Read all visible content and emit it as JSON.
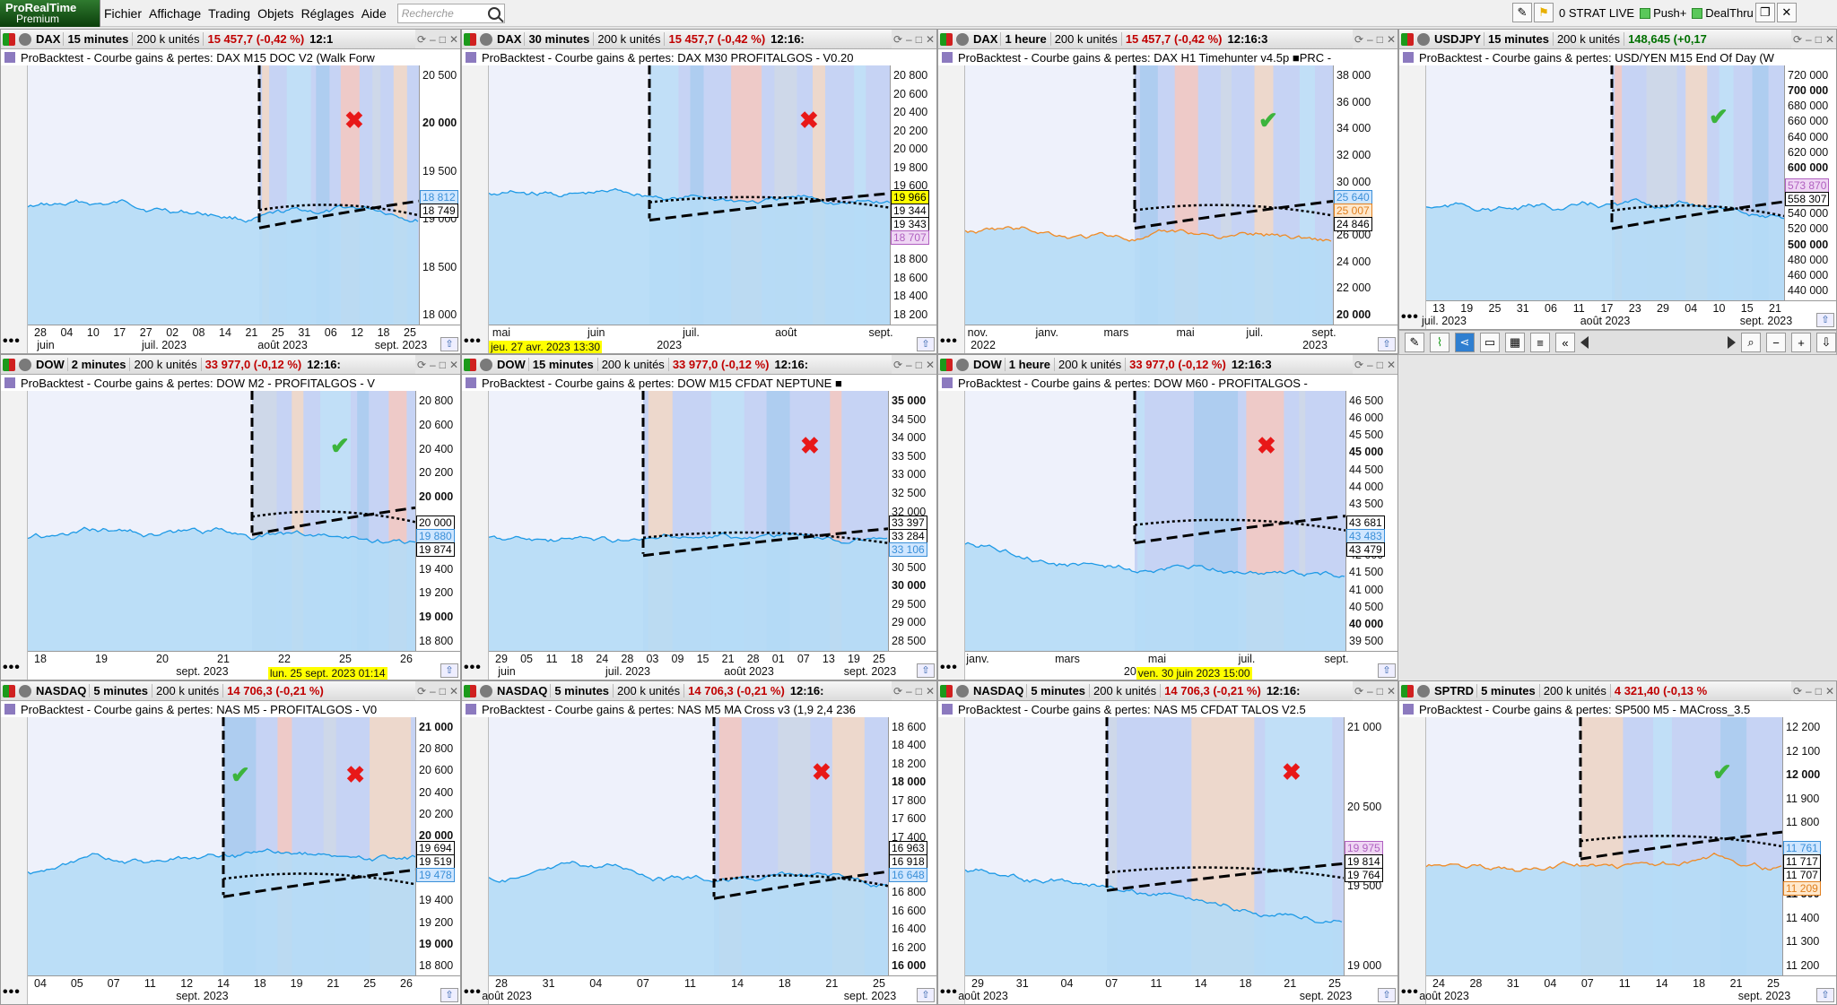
{
  "app": {
    "logo_line1": "ProRealTime",
    "logo_line2": "Premium"
  },
  "menu": [
    "Fichier",
    "Affichage",
    "Trading",
    "Objets",
    "Réglages",
    "Aide"
  ],
  "search": {
    "placeholder": "Recherche"
  },
  "menubar_right": {
    "strat": "0 STRAT LIVE",
    "push": "Push+",
    "deal": "DealThru"
  },
  "panels": [
    {
      "sym": "DAX",
      "tf": "15 minutes",
      "units": "200 k unités",
      "price": "15 457,7 (-0,42 %)",
      "dir": "neg",
      "time": "12:1",
      "title": "ProBacktest - Courbe gains & pertes: DAX M15 DOC V2 (Walk Forw",
      "mark": "cross",
      "y": [
        {
          "t": "20 500",
          "b": 0
        },
        {
          "t": "20 000",
          "b": 1
        },
        {
          "t": "19 500",
          "b": 0
        },
        {
          "t": "19 000",
          "b": 0
        },
        {
          "t": "18 500",
          "b": 0
        },
        {
          "t": "18 000",
          "b": 0
        }
      ],
      "ylab": [
        {
          "t": "18 812",
          "c": "#3a8fd8",
          "bg": "#cfe6ff"
        },
        {
          "t": "18 749",
          "c": "#000",
          "bg": "#fff"
        }
      ],
      "x": [
        "28",
        "04",
        "10",
        "17",
        "27",
        "02",
        "08",
        "14",
        "21",
        "25",
        "31",
        "06",
        "12",
        "18",
        "25"
      ],
      "months": [
        "juin",
        "juil. 2023",
        "août 2023",
        "sept. 2023"
      ]
    },
    {
      "sym": "DAX",
      "tf": "30 minutes",
      "units": "200 k unités",
      "price": "15 457,7 (-0,42 %)",
      "dir": "neg",
      "time": "12:16:",
      "title": "ProBacktest - Courbe gains & pertes: DAX M30 PROFITALGOS - V0.20",
      "mark": "cross",
      "y": [
        {
          "t": "20 800",
          "b": 0
        },
        {
          "t": "20 600",
          "b": 0
        },
        {
          "t": "20 400",
          "b": 0
        },
        {
          "t": "20 200",
          "b": 0
        },
        {
          "t": "20 000",
          "b": 0
        },
        {
          "t": "19 800",
          "b": 0
        },
        {
          "t": "19 600",
          "b": 0
        },
        {
          "t": "19 400",
          "b": 0
        },
        {
          "t": "19 200",
          "b": 0
        },
        {
          "t": "19 000",
          "b": 1
        },
        {
          "t": "18 800",
          "b": 0
        },
        {
          "t": "18 600",
          "b": 0
        },
        {
          "t": "18 400",
          "b": 0
        },
        {
          "t": "18 200",
          "b": 0
        }
      ],
      "ylab": [
        {
          "t": "19 966",
          "c": "#000",
          "bg": "#ffff00"
        },
        {
          "t": "19 344",
          "c": "#000",
          "bg": "#fff"
        },
        {
          "t": "19 343",
          "c": "#000",
          "bg": "#fff"
        },
        {
          "t": "18 707",
          "c": "#b060c0",
          "bg": "#efd6f4"
        }
      ],
      "x": [
        "mai",
        "juin",
        "juil.",
        "août",
        "sept."
      ],
      "months": [
        "2023"
      ],
      "cursor": "jeu. 27 avr. 2023 13:30"
    },
    {
      "sym": "DAX",
      "tf": "1 heure",
      "units": "200 k unités",
      "price": "15 457,7 (-0,42 %)",
      "dir": "neg",
      "time": "12:16:3",
      "title": "ProBacktest - Courbe gains & pertes: DAX H1 Timehunter v4.5p ■PRC -",
      "mark": "check",
      "y": [
        {
          "t": "38 000",
          "b": 0
        },
        {
          "t": "36 000",
          "b": 0
        },
        {
          "t": "34 000",
          "b": 0
        },
        {
          "t": "32 000",
          "b": 0
        },
        {
          "t": "30 000",
          "b": 0
        },
        {
          "t": "28 000",
          "b": 1
        },
        {
          "t": "26 000",
          "b": 0
        },
        {
          "t": "24 000",
          "b": 0
        },
        {
          "t": "22 000",
          "b": 0
        },
        {
          "t": "20 000",
          "b": 1
        }
      ],
      "ylab": [
        {
          "t": "25 640",
          "c": "#3a8fd8",
          "bg": "#cfe6ff"
        },
        {
          "t": "25 007",
          "c": "#e08020",
          "bg": "#ffe8cc"
        },
        {
          "t": "24 846",
          "c": "#000",
          "bg": "#fff"
        }
      ],
      "x": [
        "nov.",
        "janv.",
        "mars",
        "mai",
        "juil.",
        "sept."
      ],
      "months": [
        "2022",
        "2023"
      ]
    },
    {
      "sym": "USDJPY",
      "tf": "15 minutes",
      "units": "200 k unités",
      "price": "148,645 (+0,17",
      "dir": "pos",
      "time": "",
      "title": "ProBacktest - Courbe gains & pertes: USD/YEN M15 End Of Day (W",
      "mark": "check",
      "y": [
        {
          "t": "720 000",
          "b": 0
        },
        {
          "t": "700 000",
          "b": 1
        },
        {
          "t": "680 000",
          "b": 0
        },
        {
          "t": "660 000",
          "b": 0
        },
        {
          "t": "640 000",
          "b": 0
        },
        {
          "t": "620 000",
          "b": 0
        },
        {
          "t": "600 000",
          "b": 1
        },
        {
          "t": "580 000",
          "b": 0
        },
        {
          "t": "560 000",
          "b": 0
        },
        {
          "t": "540 000",
          "b": 0
        },
        {
          "t": "520 000",
          "b": 0
        },
        {
          "t": "500 000",
          "b": 1
        },
        {
          "t": "480 000",
          "b": 0
        },
        {
          "t": "460 000",
          "b": 0
        },
        {
          "t": "440 000",
          "b": 0
        }
      ],
      "ylab": [
        {
          "t": "573 870",
          "c": "#b060c0",
          "bg": "#efd6f4"
        },
        {
          "t": "558 307",
          "c": "#000",
          "bg": "#fff"
        }
      ],
      "x": [
        "13",
        "19",
        "25",
        "31",
        "06",
        "11",
        "17",
        "23",
        "29",
        "04",
        "10",
        "15",
        "21"
      ],
      "months": [
        "juil. 2023",
        "août 2023",
        "sept. 2023"
      ]
    },
    {
      "sym": "DOW",
      "tf": "2 minutes",
      "units": "200 k unités",
      "price": "33 977,0 (-0,12 %)",
      "dir": "neg",
      "time": "12:16:",
      "title": "ProBacktest - Courbe gains & pertes: DOW M2 - PROFITALGOS - V",
      "mark": "check",
      "y": [
        {
          "t": "20 800",
          "b": 0
        },
        {
          "t": "20 600",
          "b": 0
        },
        {
          "t": "20 400",
          "b": 0
        },
        {
          "t": "20 200",
          "b": 0
        },
        {
          "t": "20 000",
          "b": 1
        },
        {
          "t": "19 800",
          "b": 0
        },
        {
          "t": "19 600",
          "b": 0
        },
        {
          "t": "19 400",
          "b": 0
        },
        {
          "t": "19 200",
          "b": 0
        },
        {
          "t": "19 000",
          "b": 1
        },
        {
          "t": "18 800",
          "b": 0
        }
      ],
      "ylab": [
        {
          "t": "20 000",
          "c": "#000",
          "bg": "#fff"
        },
        {
          "t": "19 880",
          "c": "#3a8fd8",
          "bg": "#cfe6ff"
        },
        {
          "t": "19 874",
          "c": "#000",
          "bg": "#fff"
        }
      ],
      "x": [
        "18",
        "19",
        "20",
        "21",
        "22",
        "25",
        "26"
      ],
      "months": [
        "sept. 2023"
      ],
      "cursor": "lun. 25 sept. 2023 01:14"
    },
    {
      "sym": "DOW",
      "tf": "15 minutes",
      "units": "200 k unités",
      "price": "33 977,0 (-0,12 %)",
      "dir": "neg",
      "time": "12:16:",
      "title": "ProBacktest - Courbe gains & pertes: DOW M15 CFDAT NEPTUNE ■",
      "mark": "cross",
      "y": [
        {
          "t": "35 000",
          "b": 1
        },
        {
          "t": "34 500",
          "b": 0
        },
        {
          "t": "34 000",
          "b": 0
        },
        {
          "t": "33 500",
          "b": 0
        },
        {
          "t": "33 000",
          "b": 0
        },
        {
          "t": "32 500",
          "b": 0
        },
        {
          "t": "32 000",
          "b": 0
        },
        {
          "t": "31 500",
          "b": 0
        },
        {
          "t": "31 000",
          "b": 0
        },
        {
          "t": "30 500",
          "b": 0
        },
        {
          "t": "30 000",
          "b": 1
        },
        {
          "t": "29 500",
          "b": 0
        },
        {
          "t": "29 000",
          "b": 0
        },
        {
          "t": "28 500",
          "b": 0
        }
      ],
      "ylab": [
        {
          "t": "33 397",
          "c": "#000",
          "bg": "#fff"
        },
        {
          "t": "33 284",
          "c": "#000",
          "bg": "#fff"
        },
        {
          "t": "33 106",
          "c": "#3a8fd8",
          "bg": "#cfe6ff"
        }
      ],
      "x": [
        "29",
        "05",
        "11",
        "18",
        "24",
        "28",
        "03",
        "09",
        "15",
        "21",
        "28",
        "01",
        "07",
        "13",
        "19",
        "25"
      ],
      "months": [
        "juin",
        "juil. 2023",
        "août 2023",
        "sept. 2023"
      ]
    },
    {
      "sym": "DOW",
      "tf": "1 heure",
      "units": "200 k unités",
      "price": "33 977,0 (-0,12 %)",
      "dir": "neg",
      "time": "12:16:3",
      "title": "ProBacktest - Courbe gains & pertes: DOW M60 - PROFITALGOS -",
      "mark": "cross",
      "y": [
        {
          "t": "46 500",
          "b": 0
        },
        {
          "t": "46 000",
          "b": 0
        },
        {
          "t": "45 500",
          "b": 0
        },
        {
          "t": "45 000",
          "b": 1
        },
        {
          "t": "44 500",
          "b": 0
        },
        {
          "t": "44 000",
          "b": 0
        },
        {
          "t": "43 500",
          "b": 0
        },
        {
          "t": "43 000",
          "b": 0
        },
        {
          "t": "42 500",
          "b": 0
        },
        {
          "t": "42 000",
          "b": 0
        },
        {
          "t": "41 500",
          "b": 0
        },
        {
          "t": "41 000",
          "b": 0
        },
        {
          "t": "40 500",
          "b": 0
        },
        {
          "t": "40 000",
          "b": 1
        },
        {
          "t": "39 500",
          "b": 0
        }
      ],
      "ylab": [
        {
          "t": "43 681",
          "c": "#000",
          "bg": "#fff"
        },
        {
          "t": "43 483",
          "c": "#3a8fd8",
          "bg": "#cfe6ff"
        },
        {
          "t": "43 479",
          "c": "#000",
          "bg": "#fff"
        }
      ],
      "x": [
        "janv.",
        "mars",
        "mai",
        "juil.",
        "sept."
      ],
      "months": [
        "2022"
      ],
      "cursor": "ven. 30 juin 2023 15:00"
    },
    {
      "sym": "NASDAQ",
      "tf": "5 minutes",
      "units": "200 k unités",
      "price": "14 706,3 (-0,21 %)",
      "dir": "neg",
      "time": "",
      "title": "ProBacktest - Courbe gains & pertes: NAS M5 - PROFITALGOS - V0",
      "mark": "both",
      "y": [
        {
          "t": "21 000",
          "b": 1
        },
        {
          "t": "20 800",
          "b": 0
        },
        {
          "t": "20 600",
          "b": 0
        },
        {
          "t": "20 400",
          "b": 0
        },
        {
          "t": "20 200",
          "b": 0
        },
        {
          "t": "20 000",
          "b": 1
        },
        {
          "t": "19 800",
          "b": 0
        },
        {
          "t": "19 600",
          "b": 0
        },
        {
          "t": "19 400",
          "b": 0
        },
        {
          "t": "19 200",
          "b": 0
        },
        {
          "t": "19 000",
          "b": 1
        },
        {
          "t": "18 800",
          "b": 0
        }
      ],
      "ylab": [
        {
          "t": "19 694",
          "c": "#000",
          "bg": "#fff"
        },
        {
          "t": "19 519",
          "c": "#000",
          "bg": "#fff"
        },
        {
          "t": "19 478",
          "c": "#3a8fd8",
          "bg": "#cfe6ff"
        }
      ],
      "x": [
        "04",
        "05",
        "07",
        "11",
        "12",
        "14",
        "18",
        "19",
        "21",
        "25",
        "26"
      ],
      "months": [
        "sept. 2023"
      ]
    },
    {
      "sym": "NASDAQ",
      "tf": "5 minutes",
      "units": "200 k unités",
      "price": "14 706,3 (-0,21 %)",
      "dir": "neg",
      "time": "12:16:",
      "title": "ProBacktest - Courbe gains & pertes: NAS M5 MA Cross v3 (1,9 2,4 236",
      "mark": "cross",
      "y": [
        {
          "t": "18 600",
          "b": 0
        },
        {
          "t": "18 400",
          "b": 0
        },
        {
          "t": "18 200",
          "b": 0
        },
        {
          "t": "18 000",
          "b": 1
        },
        {
          "t": "17 800",
          "b": 0
        },
        {
          "t": "17 600",
          "b": 0
        },
        {
          "t": "17 400",
          "b": 0
        },
        {
          "t": "17 200",
          "b": 0
        },
        {
          "t": "17 000",
          "b": 0
        },
        {
          "t": "16 800",
          "b": 0
        },
        {
          "t": "16 600",
          "b": 0
        },
        {
          "t": "16 400",
          "b": 0
        },
        {
          "t": "16 200",
          "b": 0
        },
        {
          "t": "16 000",
          "b": 1
        }
      ],
      "ylab": [
        {
          "t": "16 963",
          "c": "#000",
          "bg": "#fff"
        },
        {
          "t": "16 918",
          "c": "#000",
          "bg": "#fff"
        },
        {
          "t": "16 648",
          "c": "#3a8fd8",
          "bg": "#cfe6ff"
        }
      ],
      "x": [
        "28",
        "31",
        "04",
        "07",
        "11",
        "14",
        "18",
        "21",
        "25"
      ],
      "months": [
        "août 2023",
        "sept. 2023"
      ]
    },
    {
      "sym": "NASDAQ",
      "tf": "5 minutes",
      "units": "200 k unités",
      "price": "14 706,3 (-0,21 %)",
      "dir": "neg",
      "time": "12:16:",
      "title": "ProBacktest - Courbe gains & pertes: NAS M5 CFDAT TALOS  V2.5",
      "mark": "cross",
      "y": [
        {
          "t": "21 000",
          "b": 0
        },
        {
          "t": "20 500",
          "b": 0
        },
        {
          "t": "19 500",
          "b": 0
        },
        {
          "t": "19 000",
          "b": 0
        }
      ],
      "ylab": [
        {
          "t": "19 975",
          "c": "#b060c0",
          "bg": "#efd6f4"
        },
        {
          "t": "19 814",
          "c": "#000",
          "bg": "#fff"
        },
        {
          "t": "19 764",
          "c": "#000",
          "bg": "#fff"
        }
      ],
      "x": [
        "29",
        "31",
        "04",
        "07",
        "11",
        "14",
        "18",
        "21",
        "25"
      ],
      "months": [
        "août 2023",
        "sept. 2023"
      ]
    },
    {
      "sym": "SPTRD",
      "tf": "5 minutes",
      "units": "200 k unités",
      "price": "4 321,40 (-0,13 %",
      "dir": "neg",
      "time": "",
      "title": "ProBacktest - Courbe gains & pertes: SP500 M5 - MACross_3.5",
      "mark": "check",
      "y": [
        {
          "t": "12 200",
          "b": 0
        },
        {
          "t": "12 100",
          "b": 0
        },
        {
          "t": "12 000",
          "b": 1
        },
        {
          "t": "11 900",
          "b": 0
        },
        {
          "t": "11 800",
          "b": 0
        },
        {
          "t": "11 700",
          "b": 0
        },
        {
          "t": "11 600",
          "b": 0
        },
        {
          "t": "11 500",
          "b": 1
        },
        {
          "t": "11 400",
          "b": 0
        },
        {
          "t": "11 300",
          "b": 0
        },
        {
          "t": "11 200",
          "b": 0
        }
      ],
      "ylab": [
        {
          "t": "11 761",
          "c": "#3a8fd8",
          "bg": "#cfe6ff"
        },
        {
          "t": "11 717",
          "c": "#000",
          "bg": "#fff"
        },
        {
          "t": "11 707",
          "c": "#000",
          "bg": "#fff"
        },
        {
          "t": "11 209",
          "c": "#e08020",
          "bg": "#ffe8cc"
        }
      ],
      "x": [
        "24",
        "28",
        "31",
        "04",
        "07",
        "11",
        "14",
        "18",
        "21",
        "25"
      ],
      "months": [
        "août 2023",
        "sept. 2023"
      ]
    }
  ]
}
